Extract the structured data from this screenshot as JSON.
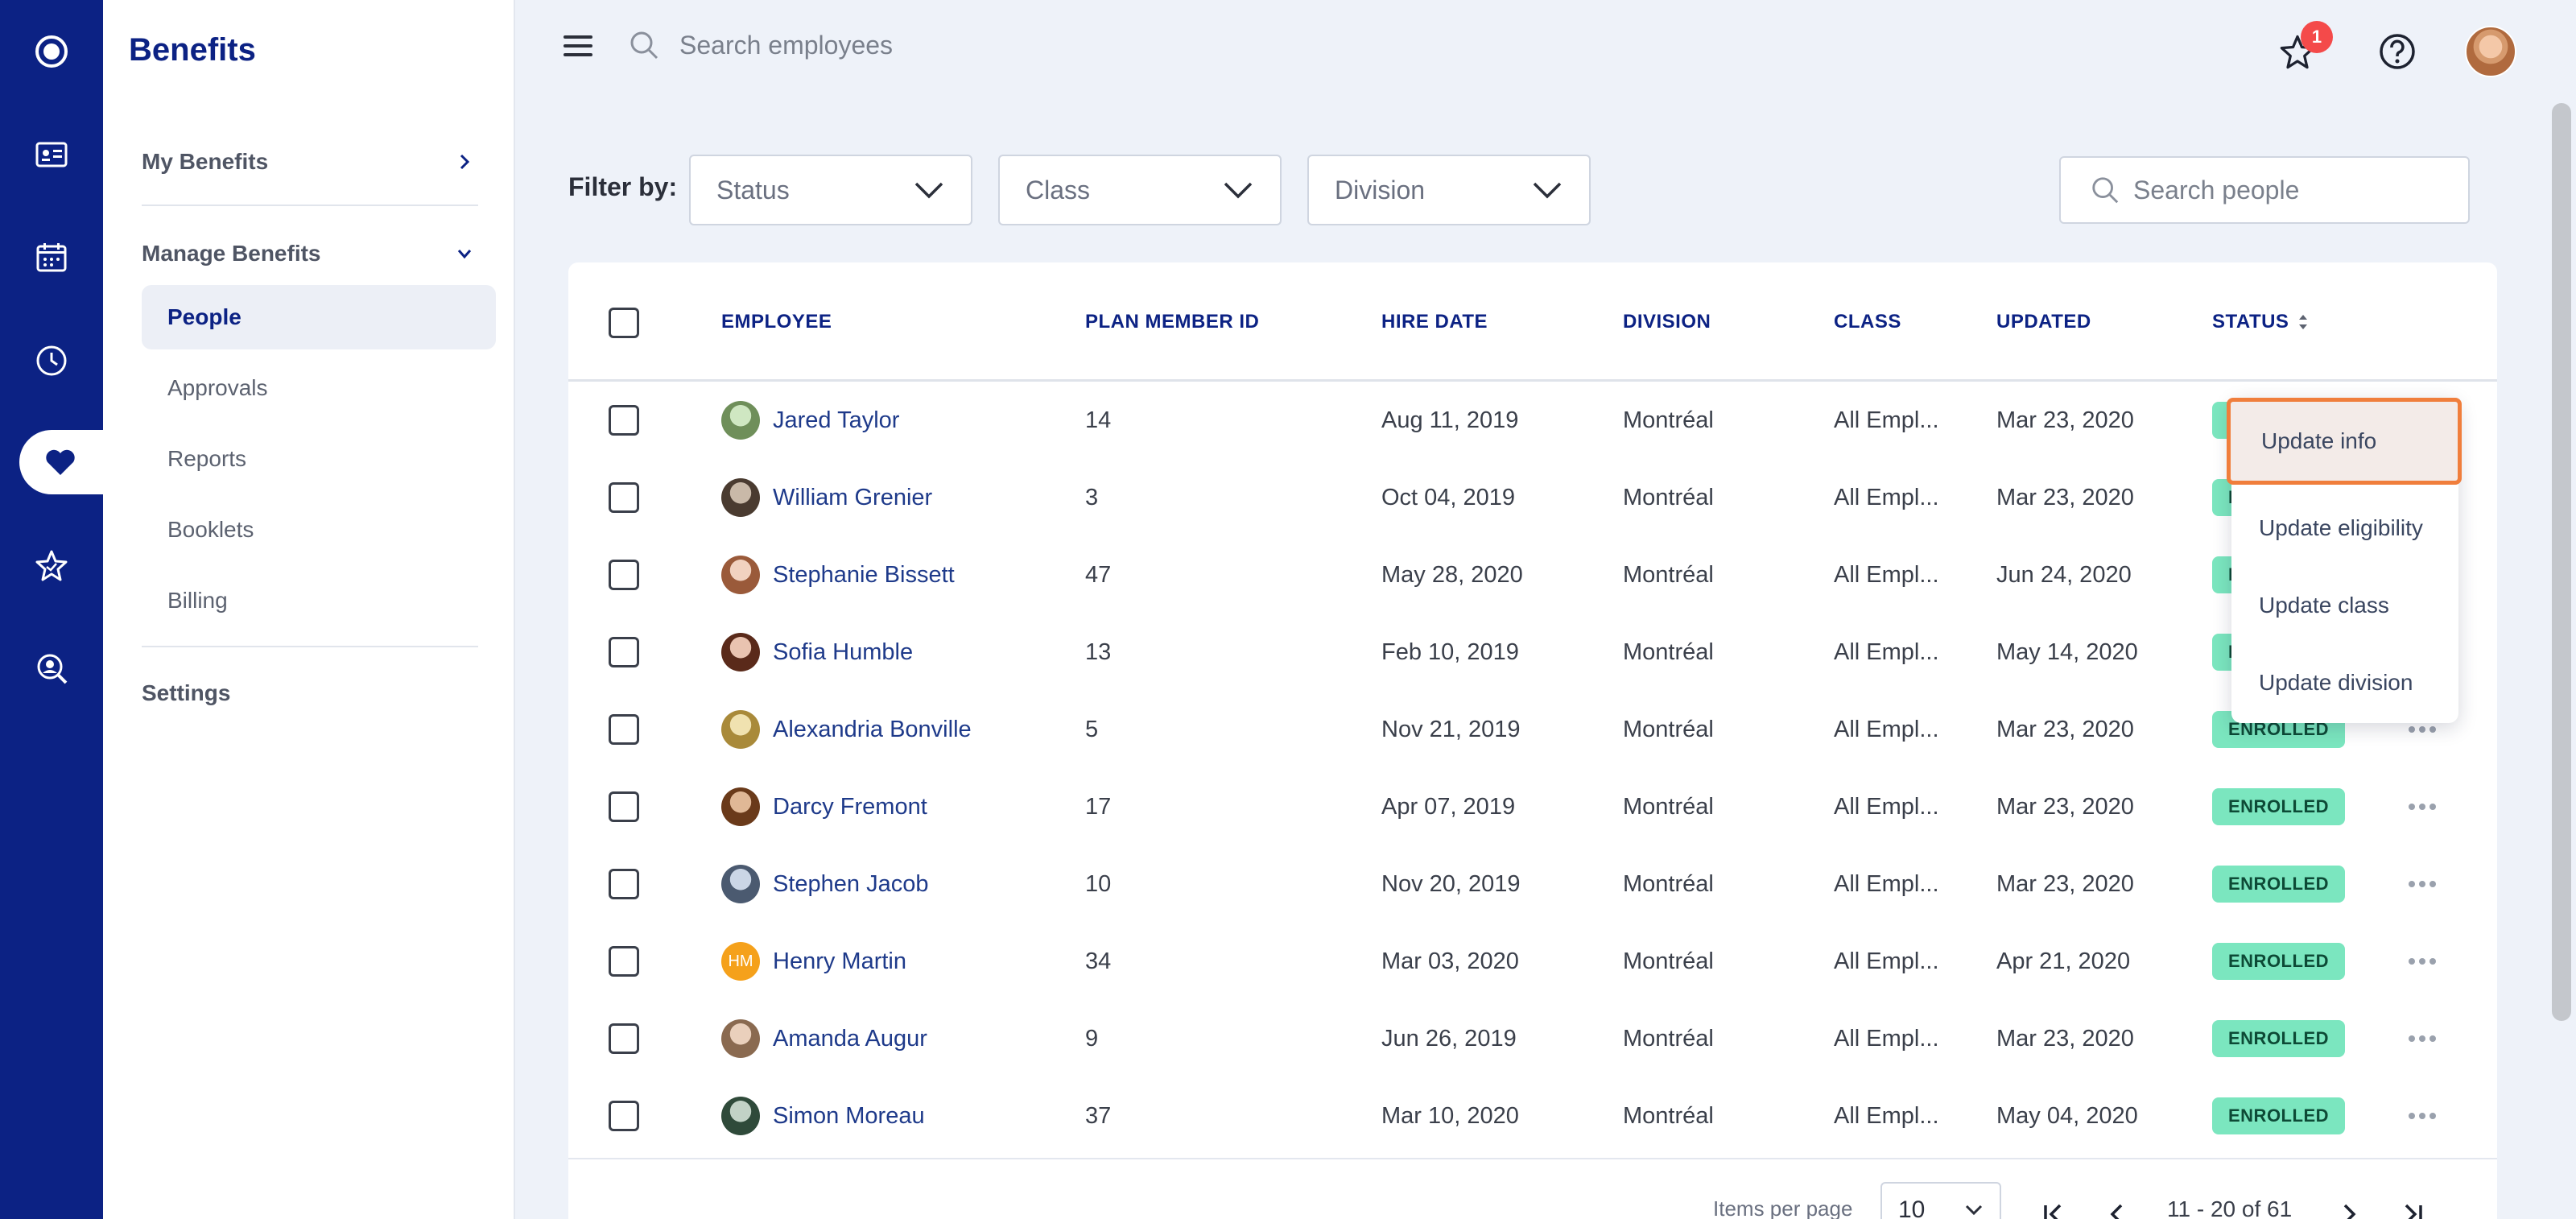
{
  "sidebar": {
    "title": "Benefits",
    "my_benefits": "My Benefits",
    "manage_benefits": "Manage Benefits",
    "items": [
      {
        "label": "People",
        "active": true
      },
      {
        "label": "Approvals"
      },
      {
        "label": "Reports"
      },
      {
        "label": "Booklets"
      },
      {
        "label": "Billing"
      }
    ],
    "settings": "Settings"
  },
  "rail_icons": [
    "logo-icon",
    "id-card-icon",
    "calendar-icon",
    "clock-icon",
    "heart-benefits-icon",
    "star-icon",
    "search-person-icon"
  ],
  "topbar": {
    "search_placeholder": "Search employees",
    "notification_count": "1"
  },
  "filters": {
    "label": "Filter by:",
    "status": "Status",
    "class": "Class",
    "division": "Division",
    "search_placeholder": "Search people"
  },
  "table": {
    "headers": {
      "employee": "EMPLOYEE",
      "plan_member_id": "PLAN MEMBER ID",
      "hire_date": "HIRE DATE",
      "division": "DIVISION",
      "class": "CLASS",
      "updated": "UPDATED",
      "status": "STATUS"
    },
    "rows": [
      {
        "name": "Jared Taylor",
        "id": "14",
        "hire": "Aug 11, 2019",
        "division": "Montréal",
        "class": "All Empl...",
        "updated": "Mar 23, 2020",
        "status": "ENROLLED"
      },
      {
        "name": "William Grenier",
        "id": "3",
        "hire": "Oct 04, 2019",
        "division": "Montréal",
        "class": "All Empl...",
        "updated": "Mar 23, 2020",
        "status": "ENROLLED"
      },
      {
        "name": "Stephanie Bissett",
        "id": "47",
        "hire": "May 28, 2020",
        "division": "Montréal",
        "class": "All Empl...",
        "updated": "Jun 24, 2020",
        "status": "ENROLLED"
      },
      {
        "name": "Sofia Humble",
        "id": "13",
        "hire": "Feb 10, 2019",
        "division": "Montréal",
        "class": "All Empl...",
        "updated": "May 14, 2020",
        "status": "ENROLLED"
      },
      {
        "name": "Alexandria Bonville",
        "id": "5",
        "hire": "Nov 21, 2019",
        "division": "Montréal",
        "class": "All Empl...",
        "updated": "Mar 23, 2020",
        "status": "ENROLLED"
      },
      {
        "name": "Darcy Fremont",
        "id": "17",
        "hire": "Apr 07, 2019",
        "division": "Montréal",
        "class": "All Empl...",
        "updated": "Mar 23, 2020",
        "status": "ENROLLED"
      },
      {
        "name": "Stephen Jacob",
        "id": "10",
        "hire": "Nov 20, 2019",
        "division": "Montréal",
        "class": "All Empl...",
        "updated": "Mar 23, 2020",
        "status": "ENROLLED"
      },
      {
        "name": "Henry Martin",
        "id": "34",
        "hire": "Mar 03, 2020",
        "division": "Montréal",
        "class": "All Empl...",
        "updated": "Apr 21, 2020",
        "status": "ENROLLED",
        "initials": "HM"
      },
      {
        "name": "Amanda Augur",
        "id": "9",
        "hire": "Jun 26, 2019",
        "division": "Montréal",
        "class": "All Empl...",
        "updated": "Mar 23, 2020",
        "status": "ENROLLED"
      },
      {
        "name": "Simon Moreau",
        "id": "37",
        "hire": "Mar 10, 2020",
        "division": "Montréal",
        "class": "All Empl...",
        "updated": "May 04, 2020",
        "status": "ENROLLED"
      }
    ]
  },
  "context_menu": {
    "items": [
      "Update info",
      "Update eligibility",
      "Update class",
      "Update division"
    ],
    "highlighted": "Update info"
  },
  "pagination": {
    "items_per_page_label": "Items per page",
    "items_per_page": "10",
    "range": "11 - 20 of 61"
  },
  "colors": {
    "brand": "#0c2284",
    "badge": "#7be6bf",
    "highlight_border": "#f07e3c"
  }
}
